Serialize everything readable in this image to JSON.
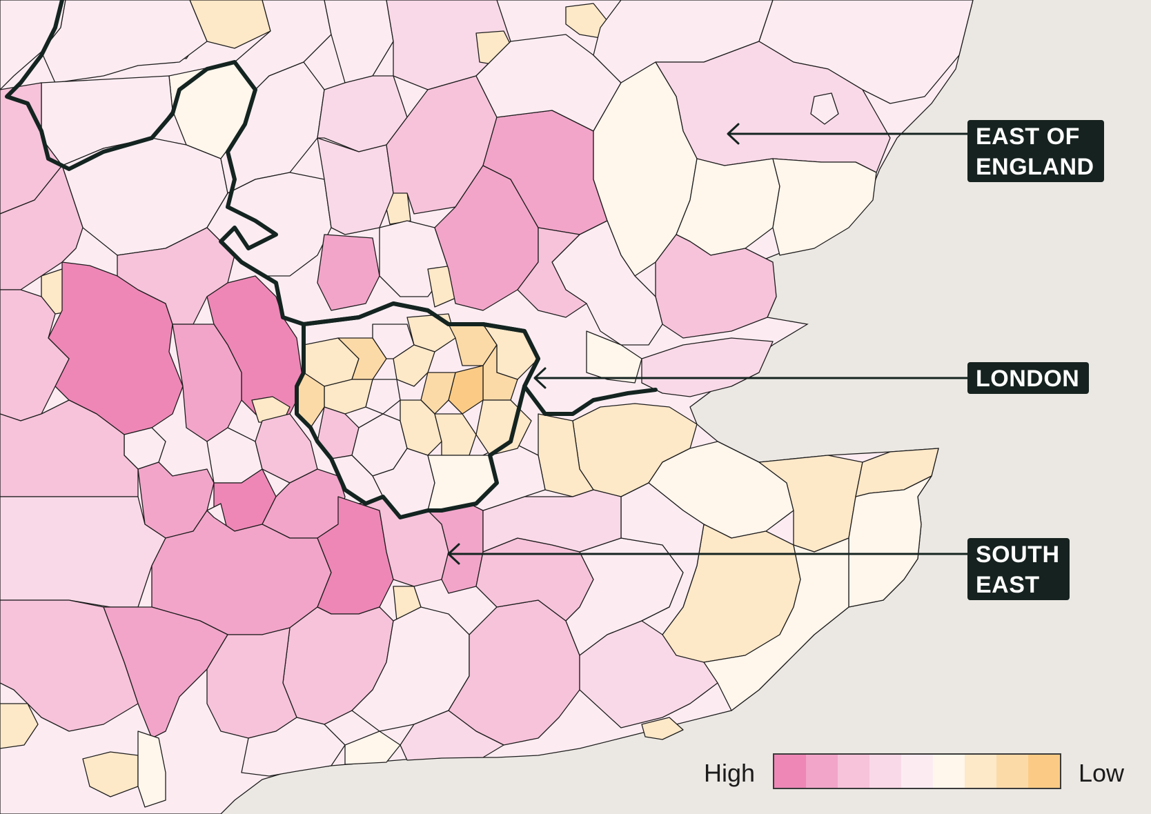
{
  "legend": {
    "high_label": "High",
    "low_label": "Low",
    "scale_colors": [
      "#ee87b6",
      "#f2a5c9",
      "#f6c3da",
      "#f9d9e7",
      "#fcecf2",
      "#fff6ec",
      "#fde8c8",
      "#fcdaa8",
      "#fbcb85"
    ]
  },
  "regions": [
    {
      "id": "east-of-england",
      "label": "EAST OF\nENGLAND"
    },
    {
      "id": "london",
      "label": "LONDON"
    },
    {
      "id": "south-east",
      "label": "SOUTH\nEAST"
    }
  ],
  "colors": {
    "sea": "#ebe8e3",
    "boundary": "#142420",
    "label_background": "#16221f",
    "label_text": "#ffffff"
  }
}
